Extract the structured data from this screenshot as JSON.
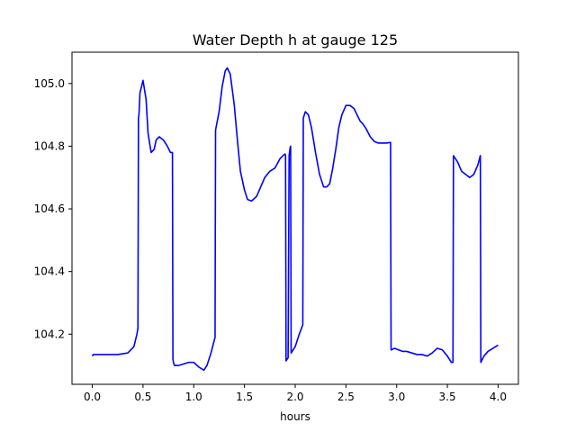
{
  "chart_data": {
    "type": "line",
    "title": "Water Depth h at gauge 125",
    "xlabel": "hours",
    "ylabel": "",
    "xlim": [
      -0.2,
      4.2
    ],
    "ylim": [
      104.04,
      105.1
    ],
    "xticks": [
      0.0,
      0.5,
      1.0,
      1.5,
      2.0,
      2.5,
      3.0,
      3.5,
      4.0
    ],
    "xtick_labels": [
      "0.0",
      "0.5",
      "1.0",
      "1.5",
      "2.0",
      "2.5",
      "3.0",
      "3.5",
      "4.0"
    ],
    "yticks": [
      104.2,
      104.4,
      104.6,
      104.8,
      105.0
    ],
    "ytick_labels": [
      "104.2",
      "104.4",
      "104.6",
      "104.8",
      "105.0"
    ],
    "grid": false,
    "series": [
      {
        "name": "",
        "color": "#0000ff",
        "x": [
          0.0,
          0.01,
          0.1,
          0.25,
          0.35,
          0.41,
          0.44,
          0.45,
          0.455,
          0.46,
          0.47,
          0.5,
          0.53,
          0.55,
          0.58,
          0.61,
          0.63,
          0.66,
          0.7,
          0.74,
          0.77,
          0.79,
          0.795,
          0.8,
          0.81,
          0.85,
          0.9,
          0.95,
          1.0,
          1.05,
          1.1,
          1.13,
          1.17,
          1.21,
          1.215,
          1.22,
          1.25,
          1.28,
          1.31,
          1.33,
          1.36,
          1.4,
          1.43,
          1.46,
          1.5,
          1.53,
          1.57,
          1.62,
          1.66,
          1.7,
          1.75,
          1.8,
          1.85,
          1.88,
          1.9,
          1.905,
          1.91,
          1.93,
          1.94,
          1.95,
          1.955,
          1.96,
          2.0,
          2.04,
          2.075,
          2.08,
          2.1,
          2.13,
          2.16,
          2.2,
          2.24,
          2.28,
          2.31,
          2.34,
          2.37,
          2.4,
          2.43,
          2.46,
          2.5,
          2.54,
          2.58,
          2.61,
          2.64,
          2.67,
          2.7,
          2.74,
          2.78,
          2.82,
          2.86,
          2.9,
          2.94,
          2.945,
          2.95,
          2.98,
          3.02,
          3.06,
          3.1,
          3.15,
          3.2,
          3.25,
          3.3,
          3.35,
          3.4,
          3.45,
          3.5,
          3.54,
          3.555,
          3.56,
          3.6,
          3.64,
          3.68,
          3.72,
          3.76,
          3.8,
          3.825,
          3.83,
          3.86,
          3.9,
          3.95,
          4.0
        ],
        "y": [
          104.13,
          104.135,
          104.135,
          104.135,
          104.14,
          104.16,
          104.2,
          104.22,
          104.89,
          104.9,
          104.97,
          105.01,
          104.95,
          104.84,
          104.78,
          104.79,
          104.82,
          104.83,
          104.82,
          104.8,
          104.78,
          104.78,
          104.12,
          104.11,
          104.1,
          104.1,
          104.105,
          104.11,
          104.11,
          104.095,
          104.085,
          104.1,
          104.14,
          104.19,
          104.85,
          104.86,
          104.91,
          104.99,
          105.04,
          105.05,
          105.03,
          104.93,
          104.82,
          104.72,
          104.66,
          104.63,
          104.625,
          104.64,
          104.67,
          104.7,
          104.72,
          104.73,
          104.76,
          104.77,
          104.775,
          104.77,
          104.115,
          104.125,
          104.77,
          104.795,
          104.8,
          104.14,
          104.16,
          104.2,
          104.23,
          104.89,
          104.91,
          104.9,
          104.86,
          104.78,
          104.71,
          104.67,
          104.67,
          104.68,
          104.73,
          104.79,
          104.86,
          104.9,
          104.93,
          104.93,
          104.92,
          104.9,
          104.88,
          104.87,
          104.855,
          104.83,
          104.815,
          104.81,
          104.81,
          104.81,
          104.812,
          104.15,
          104.15,
          104.155,
          104.15,
          104.145,
          104.145,
          104.14,
          104.135,
          104.135,
          104.13,
          104.14,
          104.155,
          104.15,
          104.13,
          104.11,
          104.11,
          104.77,
          104.75,
          104.72,
          104.71,
          104.7,
          104.71,
          104.74,
          104.77,
          104.11,
          104.13,
          104.145,
          104.155,
          104.165
        ]
      }
    ]
  }
}
